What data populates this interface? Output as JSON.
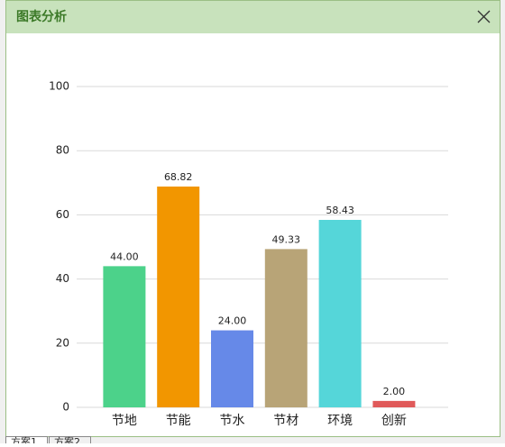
{
  "window": {
    "title": "图表分析",
    "tabs": [
      "方案1",
      "方案2"
    ]
  },
  "chart_data": {
    "type": "bar",
    "categories": [
      "节地",
      "节能",
      "节水",
      "节材",
      "环境",
      "创新"
    ],
    "values": [
      44,
      68.82,
      24,
      49.33,
      58.43,
      2
    ],
    "value_labels": [
      "44.00",
      "68.82",
      "24.00",
      "49.33",
      "58.43",
      "2.00"
    ],
    "colors": [
      "#4cd28a",
      "#f29600",
      "#6689e8",
      "#b8a477",
      "#55d6d9",
      "#e05a5a"
    ],
    "ylim": [
      0,
      100
    ],
    "yticks": [
      0,
      20,
      40,
      60,
      80,
      100
    ],
    "grid": true
  }
}
